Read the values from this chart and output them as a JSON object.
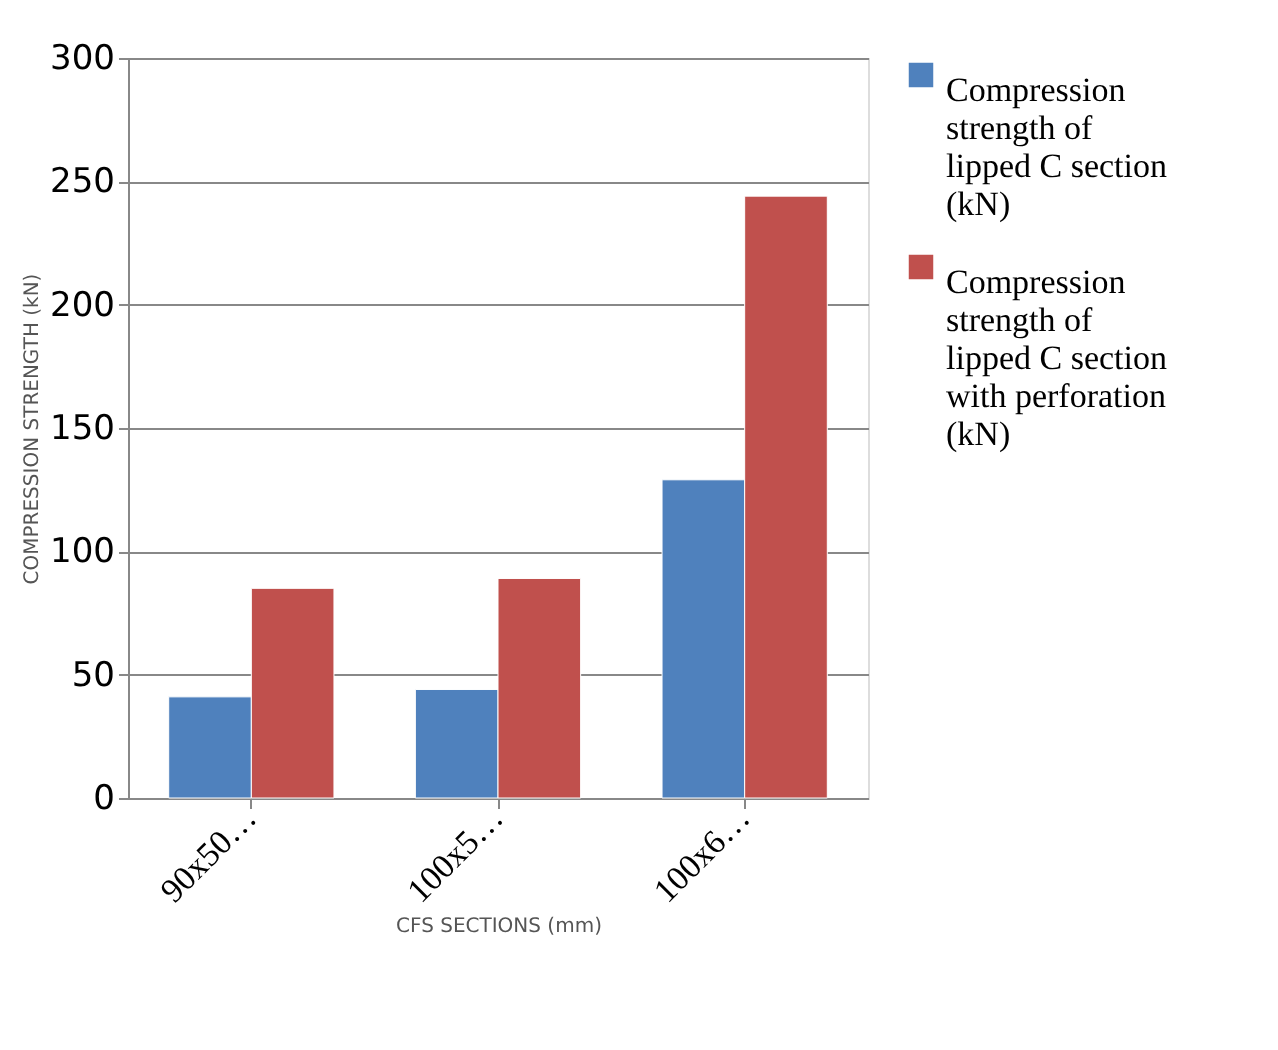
{
  "chart_data": {
    "type": "bar",
    "xlabel": "CFS SECTIONS  (mm)",
    "ylabel": "COMPRESSION STRENGTH (kN)",
    "categories": [
      "90x50…",
      "100x5…",
      "100x6…"
    ],
    "series": [
      {
        "name": "Compression strength of lipped C section (kN)",
        "color": "#4f81bd",
        "values": [
          41,
          44,
          129
        ]
      },
      {
        "name": "Compression strength of lipped C section with perforation (kN)",
        "color": "#c0504d",
        "values": [
          85,
          89,
          244
        ]
      }
    ],
    "ylim": [
      0,
      300
    ],
    "yticks": [
      0,
      50,
      100,
      150,
      200,
      250,
      300
    ],
    "grid": "y",
    "legend": "right"
  }
}
